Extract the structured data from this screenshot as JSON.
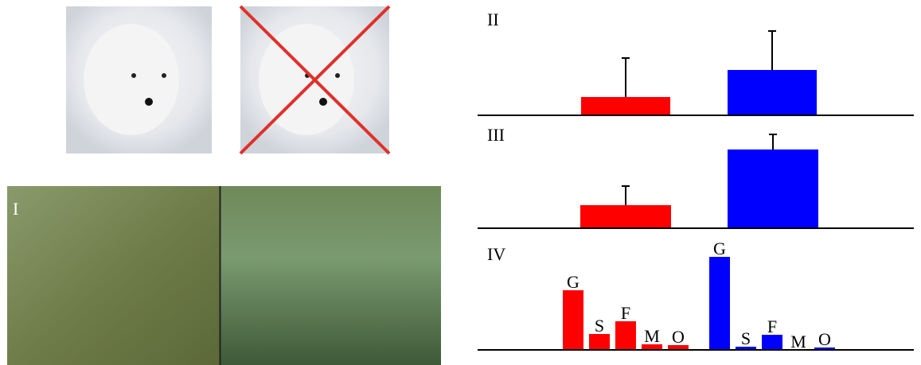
{
  "photo_label": "I",
  "chart_data": [
    {
      "type": "bar",
      "label": "II",
      "ylim": [
        0,
        110
      ],
      "series": [
        {
          "color": "#ff0000",
          "values": [
            23
          ],
          "errors": [
            49
          ]
        },
        {
          "color": "#0000ff",
          "values": [
            57
          ],
          "errors": [
            49
          ]
        }
      ]
    },
    {
      "type": "bar",
      "label": "III",
      "ylim": [
        0,
        130
      ],
      "series": [
        {
          "color": "#ff0000",
          "values": [
            29
          ],
          "errors": [
            24
          ]
        },
        {
          "color": "#0000ff",
          "values": [
            99
          ],
          "errors": [
            19
          ]
        }
      ]
    },
    {
      "type": "bar",
      "label": "IV",
      "ylim": [
        0,
        125
      ],
      "categories": [
        "G",
        "S",
        "F",
        "M",
        "O"
      ],
      "series": [
        {
          "color": "#ff0000",
          "values": [
            75,
            20,
            36,
            7,
            6
          ]
        },
        {
          "color": "#0000ff",
          "values": [
            117,
            4,
            19,
            0,
            3
          ]
        }
      ]
    }
  ]
}
